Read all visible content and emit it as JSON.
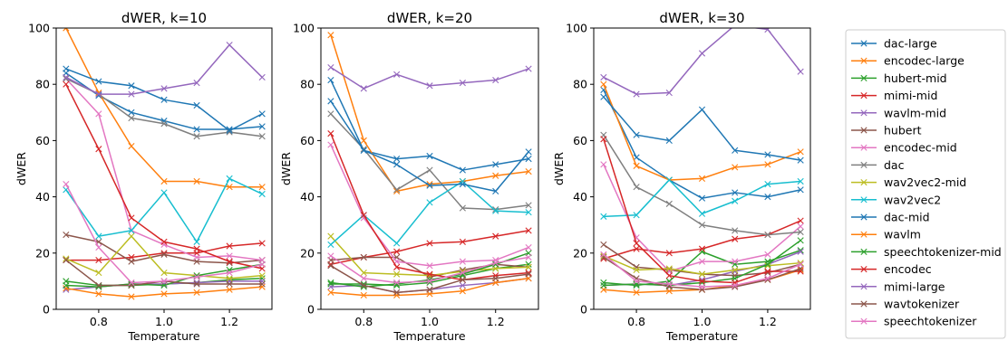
{
  "chart_data": [
    {
      "type": "line",
      "title": "dWER, k=10",
      "xlabel": "Temperature",
      "ylabel": "dWER",
      "xlim": [
        0.67,
        1.33
      ],
      "ylim": [
        0,
        100
      ],
      "xticks": [
        0.8,
        1.0,
        1.2
      ],
      "xtick_labels": [
        "0.8",
        "1.0",
        "1.2"
      ],
      "yticks": [
        0,
        20,
        40,
        60,
        80,
        100
      ],
      "ytick_labels": [
        "0",
        "20",
        "40",
        "60",
        "80",
        "100"
      ],
      "x": [
        0.7,
        0.8,
        0.9,
        1.0,
        1.1,
        1.2,
        1.3
      ],
      "series": [
        {
          "name": "dac-large",
          "values": [
            84,
            76,
            70,
            67,
            64,
            64,
            65
          ]
        },
        {
          "name": "encodec-large",
          "values": [
            100,
            77,
            58,
            45.5,
            45.5,
            43.5,
            43.5
          ]
        },
        {
          "name": "hubert-mid",
          "values": [
            10,
            8.5,
            8.5,
            9,
            9.5,
            10.5,
            11
          ]
        },
        {
          "name": "mimi-mid",
          "values": [
            17.5,
            17.5,
            18.5,
            20,
            20,
            22.5,
            23.5
          ]
        },
        {
          "name": "wavlm-mid",
          "values": [
            7,
            8,
            9,
            9,
            9.5,
            10,
            10
          ]
        },
        {
          "name": "hubert",
          "values": [
            26.5,
            24,
            17,
            19.5,
            17,
            16.5,
            17.5
          ]
        },
        {
          "name": "encodec-mid",
          "values": [
            82,
            69.5,
            28,
            23,
            18.5,
            19,
            17.5
          ]
        },
        {
          "name": "dac",
          "values": [
            82,
            76.5,
            68,
            66,
            61.5,
            63,
            61.5
          ]
        },
        {
          "name": "wav2vec2-mid",
          "values": [
            18,
            13,
            26,
            13,
            12,
            11,
            12
          ]
        },
        {
          "name": "wav2vec2",
          "values": [
            42.5,
            26,
            28,
            41.5,
            24,
            46.5,
            41
          ]
        },
        {
          "name": "dac-mid",
          "values": [
            85.5,
            81,
            79.5,
            74.5,
            72.5,
            63.5,
            69.5
          ]
        },
        {
          "name": "wavlm",
          "values": [
            7.5,
            5.5,
            4.5,
            5.5,
            6,
            7,
            8
          ]
        },
        {
          "name": "speechtokenizer-mid",
          "values": [
            8.5,
            8,
            9,
            8.5,
            12,
            14,
            16
          ]
        },
        {
          "name": "encodec",
          "values": [
            80,
            57,
            32.5,
            24,
            21.5,
            17,
            14.5
          ]
        },
        {
          "name": "mimi-large",
          "values": [
            82.5,
            76.5,
            76.5,
            78.5,
            80.5,
            94,
            82.5
          ]
        },
        {
          "name": "wavtokenizer",
          "values": [
            17.5,
            8.5,
            8.5,
            10,
            9,
            9,
            9
          ]
        },
        {
          "name": "speechtokenizer",
          "values": [
            44.5,
            22,
            9.5,
            10,
            11.5,
            13,
            16
          ]
        }
      ]
    },
    {
      "type": "line",
      "title": "dWER, k=20",
      "xlabel": "Temperature",
      "ylabel": "dWER",
      "xlim": [
        0.67,
        1.33
      ],
      "ylim": [
        0,
        100
      ],
      "xticks": [
        0.8,
        1.0,
        1.2
      ],
      "xtick_labels": [
        "0.8",
        "1.0",
        "1.2"
      ],
      "yticks": [
        0,
        20,
        40,
        60,
        80,
        100
      ],
      "ytick_labels": [
        "0",
        "20",
        "40",
        "60",
        "80",
        "100"
      ],
      "x": [
        0.7,
        0.8,
        0.9,
        1.0,
        1.1,
        1.2,
        1.3
      ],
      "series": [
        {
          "name": "dac-large",
          "values": [
            81.5,
            56.5,
            53.5,
            54.5,
            49.5,
            51.5,
            53.5
          ]
        },
        {
          "name": "encodec-large",
          "values": [
            97.5,
            60,
            42,
            44.5,
            45.5,
            47.5,
            49
          ]
        },
        {
          "name": "hubert-mid",
          "values": [
            9,
            9,
            8.5,
            9.5,
            12,
            14.5,
            16
          ]
        },
        {
          "name": "mimi-mid",
          "values": [
            16,
            18.5,
            20.5,
            23.5,
            24,
            26,
            28
          ]
        },
        {
          "name": "wavlm-mid",
          "values": [
            8,
            8.5,
            6,
            7,
            8.5,
            9.5,
            11
          ]
        },
        {
          "name": "hubert",
          "values": [
            17.5,
            18.5,
            18.5,
            11.5,
            14,
            16,
            15
          ]
        },
        {
          "name": "encodec-mid",
          "values": [
            58.5,
            32.5,
            17,
            15.5,
            17,
            17.5,
            22
          ]
        },
        {
          "name": "dac",
          "values": [
            69.5,
            57,
            42.5,
            49.5,
            36,
            35.5,
            37
          ]
        },
        {
          "name": "wav2vec2-mid",
          "values": [
            26,
            13,
            12.5,
            12,
            13.5,
            14.5,
            15
          ]
        },
        {
          "name": "wav2vec2",
          "values": [
            23,
            33.5,
            23.5,
            38,
            45.5,
            35,
            34.5
          ]
        },
        {
          "name": "dac-mid",
          "values": [
            74,
            56.5,
            51.5,
            44,
            44.5,
            42,
            56
          ]
        },
        {
          "name": "wavlm",
          "values": [
            6,
            5,
            5,
            5.5,
            6.5,
            9.5,
            11
          ]
        },
        {
          "name": "speechtokenizer-mid",
          "values": [
            9.5,
            8,
            9,
            10.5,
            12.5,
            16,
            20
          ]
        },
        {
          "name": "encodec",
          "values": [
            62.5,
            33.5,
            15,
            12.5,
            10.5,
            12,
            13
          ]
        },
        {
          "name": "mimi-large",
          "values": [
            86,
            78.5,
            83.5,
            79.5,
            80.5,
            81.5,
            85.5
          ]
        },
        {
          "name": "wavtokenizer",
          "values": [
            15.5,
            8.5,
            6,
            7,
            10.5,
            11,
            12.5
          ]
        },
        {
          "name": "speechtokenizer",
          "values": [
            19,
            11,
            9.5,
            10,
            13,
            16.5,
            18.5
          ]
        }
      ]
    },
    {
      "type": "line",
      "title": "dWER, k=30",
      "xlabel": "Temperature",
      "ylabel": "dWER",
      "xlim": [
        0.67,
        1.33
      ],
      "ylim": [
        0,
        100
      ],
      "xticks": [
        0.8,
        1.0,
        1.2
      ],
      "xtick_labels": [
        "0.8",
        "1.0",
        "1.2"
      ],
      "yticks": [
        0,
        20,
        40,
        60,
        80,
        100
      ],
      "ytick_labels": [
        "0",
        "20",
        "40",
        "60",
        "80",
        "100"
      ],
      "x": [
        0.7,
        0.8,
        0.9,
        1.0,
        1.1,
        1.2,
        1.3
      ],
      "series": [
        {
          "name": "dac-large",
          "values": [
            78,
            54,
            46,
            39.5,
            41.5,
            40,
            42.5
          ]
        },
        {
          "name": "encodec-large",
          "values": [
            80,
            51,
            46,
            46.5,
            50.5,
            51.5,
            56
          ]
        },
        {
          "name": "hubert-mid",
          "values": [
            9.5,
            8.5,
            10,
            20.5,
            16,
            17,
            21
          ]
        },
        {
          "name": "mimi-mid",
          "values": [
            18,
            21.5,
            20,
            21.5,
            25,
            26.5,
            31.5
          ]
        },
        {
          "name": "wavlm-mid",
          "values": [
            8.5,
            9,
            8.5,
            10.5,
            13.5,
            16,
            20.5
          ]
        },
        {
          "name": "hubert",
          "values": [
            23,
            15,
            14,
            12.5,
            12,
            13,
            16
          ]
        },
        {
          "name": "encodec-mid",
          "values": [
            51.5,
            25.5,
            13.5,
            17,
            17,
            19.5,
            29.5
          ]
        },
        {
          "name": "dac",
          "values": [
            62,
            43.5,
            37.5,
            30,
            28,
            26.5,
            27.5
          ]
        },
        {
          "name": "wav2vec2-mid",
          "values": [
            19,
            14,
            14.5,
            12.5,
            14,
            15.5,
            16.5
          ]
        },
        {
          "name": "wav2vec2",
          "values": [
            33,
            33.5,
            46,
            34,
            38.5,
            44.5,
            45.5
          ]
        },
        {
          "name": "dac-mid",
          "values": [
            75.5,
            62,
            60,
            71,
            56.5,
            55,
            53
          ]
        },
        {
          "name": "wavlm",
          "values": [
            7,
            6,
            6.5,
            7,
            8.5,
            10.5,
            14
          ]
        },
        {
          "name": "speechtokenizer-mid",
          "values": [
            8.5,
            9,
            8.5,
            9.5,
            11,
            16,
            24.5
          ]
        },
        {
          "name": "encodec",
          "values": [
            60.5,
            23.5,
            12,
            10,
            9.5,
            13.5,
            13.5
          ]
        },
        {
          "name": "mimi-large",
          "values": [
            82.5,
            76.5,
            77,
            91,
            101,
            99.5,
            84.5
          ]
        },
        {
          "name": "wavtokenizer",
          "values": [
            18.5,
            11,
            8,
            7,
            8,
            10.5,
            14.5
          ]
        },
        {
          "name": "speechtokenizer",
          "values": [
            19.5,
            10,
            9,
            8,
            8.5,
            11,
            16
          ]
        }
      ]
    }
  ],
  "legend": {
    "position": "right",
    "entries": [
      {
        "label": "dac-large",
        "color": "#1f77b4"
      },
      {
        "label": "encodec-large",
        "color": "#ff7f0e"
      },
      {
        "label": "hubert-mid",
        "color": "#2ca02c"
      },
      {
        "label": "mimi-mid",
        "color": "#d62728"
      },
      {
        "label": "wavlm-mid",
        "color": "#9467bd"
      },
      {
        "label": "hubert",
        "color": "#8c564b"
      },
      {
        "label": "encodec-mid",
        "color": "#e377c2"
      },
      {
        "label": "dac",
        "color": "#7f7f7f"
      },
      {
        "label": "wav2vec2-mid",
        "color": "#bcbd22"
      },
      {
        "label": "wav2vec2",
        "color": "#17becf"
      },
      {
        "label": "dac-mid",
        "color": "#1f77b4"
      },
      {
        "label": "wavlm",
        "color": "#ff7f0e"
      },
      {
        "label": "speechtokenizer-mid",
        "color": "#2ca02c"
      },
      {
        "label": "encodec",
        "color": "#d62728"
      },
      {
        "label": "mimi-large",
        "color": "#9467bd"
      },
      {
        "label": "wavtokenizer",
        "color": "#8c564b"
      },
      {
        "label": "speechtokenizer",
        "color": "#e377c2"
      }
    ]
  }
}
